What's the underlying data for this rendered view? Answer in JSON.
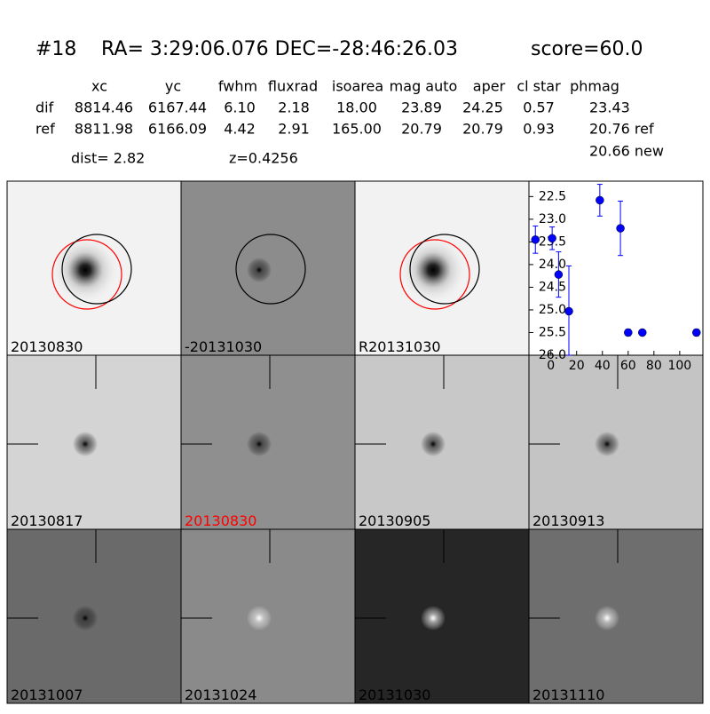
{
  "header": {
    "id": "#18",
    "coords": "RA= 3:29:06.076 DEC=-28:46:26.03",
    "score": "score=60.0"
  },
  "table": {
    "columns": [
      "xc",
      "yc",
      "fwhm",
      "fluxrad",
      "isoarea",
      "mag auto",
      "aper",
      "cl star",
      "phmag"
    ],
    "rows": [
      [
        "dif",
        "8814.46",
        "6167.44",
        "6.10",
        "2.18",
        "18.00",
        "23.89",
        "24.25",
        "0.57",
        "23.43"
      ],
      [
        "ref",
        "8811.98",
        "6166.09",
        "4.42",
        "2.91",
        "165.00",
        "20.79",
        "20.79",
        "0.93",
        "20.76 ref"
      ]
    ],
    "extra": "20.66 new"
  },
  "dist": "dist=  2.82",
  "z": "z=0.4256",
  "stamps": [
    "20130830",
    "-20131030",
    "R20131030",
    "20130817",
    "20130830",
    "20130905",
    "20130913",
    "20131007",
    "20131024",
    "20131030",
    "20131110"
  ],
  "chart_data": {
    "type": "scatter",
    "x": [
      -12,
      1,
      6,
      14,
      38,
      54,
      60,
      71,
      113
    ],
    "series": [
      {
        "color": "#0000ff",
        "values": [
          23.45,
          23.42,
          24.22,
          25.03,
          22.58,
          23.2,
          25.5,
          25.5,
          25.5
        ],
        "errors": [
          0.3,
          0.25,
          0.5,
          1.0,
          0.35,
          0.6,
          0.07,
          0.05,
          0.07
        ]
      }
    ],
    "xlim": [
      -17,
      118
    ],
    "xticks": [
      0,
      20,
      40,
      60,
      80,
      100
    ],
    "ylim": [
      26.0,
      22.16
    ],
    "yticks": [
      22.5,
      {
        "value": 23.0,
        "label": "23.0"
      },
      23.5,
      {
        "value": 24.0,
        "label": "24.0"
      },
      24.5,
      {
        "value": 25.0,
        "label": "25.0"
      },
      25.5,
      {
        "value": 26.0,
        "label": "26.0"
      }
    ]
  }
}
